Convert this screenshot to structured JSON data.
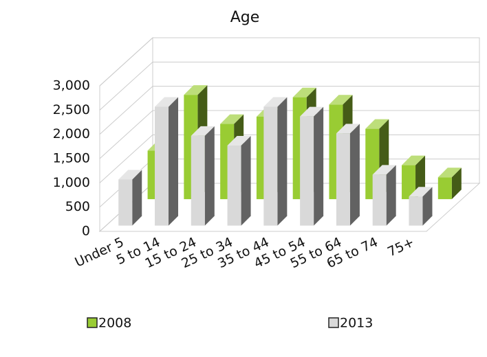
{
  "chart_data": {
    "type": "bar3d",
    "title": "Age",
    "categories": [
      "Under 5",
      "5 to 14",
      "15 to 24",
      "25 to 34",
      "35 to 44",
      "45 to 54",
      "55 to 64",
      "65 to 74",
      "75+"
    ],
    "series": [
      {
        "name": "2008",
        "color": "#99cc33",
        "values": [
          1000,
          2150,
          1550,
          1700,
          2100,
          1950,
          1450,
          700,
          450
        ]
      },
      {
        "name": "2013",
        "color": "#d9d9d9",
        "values": [
          950,
          2450,
          1850,
          1650,
          2450,
          2250,
          1900,
          1050,
          600
        ]
      }
    ],
    "ylim": [
      0,
      3000
    ],
    "yticks": [
      0,
      500,
      {
        "value": 1000,
        "label": "1,000"
      },
      {
        "value": 1500,
        "label": "1,500"
      },
      {
        "value": 2000,
        "label": "2,000"
      },
      {
        "value": 2500,
        "label": "2,500"
      },
      {
        "value": 3000,
        "label": "3,000"
      }
    ],
    "grid": true,
    "legend": "bottom"
  }
}
